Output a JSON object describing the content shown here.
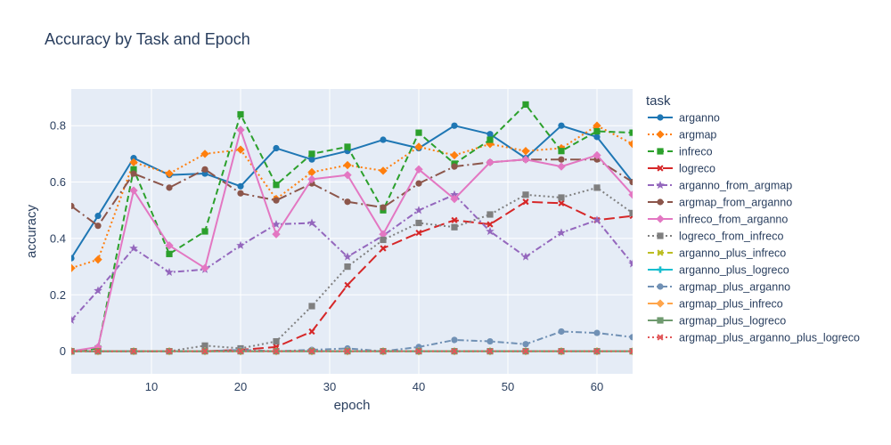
{
  "chart_data": {
    "type": "line",
    "title": "Accuracy by Task and Epoch",
    "xlabel": "epoch",
    "ylabel": "accuracy",
    "legend_title": "task",
    "legend_position": "right",
    "grid": true,
    "xlim": [
      1,
      64
    ],
    "ylim": [
      -0.08,
      0.93
    ],
    "x_ticks": [
      10,
      20,
      30,
      40,
      50,
      60
    ],
    "y_ticks": [
      0,
      0.2,
      0.4,
      0.6,
      0.8
    ],
    "x": [
      1,
      4,
      8,
      12,
      16,
      20,
      24,
      28,
      32,
      36,
      40,
      44,
      48,
      52,
      56,
      60,
      64
    ],
    "series": [
      {
        "name": "arganno",
        "color": "#1f77b4",
        "dash": "solid",
        "marker": "circle",
        "values": [
          0.33,
          0.48,
          0.685,
          0.625,
          0.63,
          0.585,
          0.72,
          0.68,
          0.71,
          0.75,
          0.72,
          0.8,
          0.77,
          0.685,
          0.8,
          0.76,
          0.6
        ]
      },
      {
        "name": "argmap",
        "color": "#ff7f0e",
        "dash": "dot",
        "marker": "diamond",
        "values": [
          0.295,
          0.325,
          0.67,
          0.63,
          0.7,
          0.715,
          0.54,
          0.635,
          0.66,
          0.64,
          0.725,
          0.695,
          0.735,
          0.71,
          0.72,
          0.8,
          0.735
        ]
      },
      {
        "name": "infreco",
        "color": "#2ca02c",
        "dash": "dash",
        "marker": "square",
        "values": [
          0.0,
          0.01,
          0.645,
          0.345,
          0.425,
          0.84,
          0.59,
          0.7,
          0.725,
          0.5,
          0.775,
          0.665,
          0.75,
          0.875,
          0.71,
          0.78,
          0.775
        ]
      },
      {
        "name": "logreco",
        "color": "#d62728",
        "dash": "longdash",
        "marker": "x",
        "values": [
          0.0,
          0.0,
          0.0,
          0.0,
          0.0,
          0.005,
          0.015,
          0.07,
          0.235,
          0.365,
          0.42,
          0.465,
          0.45,
          0.53,
          0.525,
          0.465,
          0.48
        ]
      },
      {
        "name": "arganno_from_argmap",
        "color": "#9467bd",
        "dash": "dashdot",
        "marker": "star",
        "values": [
          0.11,
          0.215,
          0.365,
          0.28,
          0.29,
          0.375,
          0.45,
          0.455,
          0.335,
          0.41,
          0.5,
          0.555,
          0.425,
          0.335,
          0.42,
          0.465,
          0.31
        ]
      },
      {
        "name": "argmap_from_arganno",
        "color": "#8c564b",
        "dash": "longdashdot",
        "marker": "circle",
        "values": [
          0.515,
          0.445,
          0.63,
          0.58,
          0.645,
          0.56,
          0.535,
          0.595,
          0.53,
          0.51,
          0.595,
          0.655,
          0.67,
          0.68,
          0.68,
          0.68,
          0.6
        ]
      },
      {
        "name": "infreco_from_arganno",
        "color": "#e377c2",
        "dash": "solid",
        "marker": "diamond",
        "values": [
          0.0,
          0.015,
          0.57,
          0.375,
          0.295,
          0.785,
          0.415,
          0.61,
          0.625,
          0.415,
          0.645,
          0.54,
          0.67,
          0.68,
          0.655,
          0.695,
          0.555
        ]
      },
      {
        "name": "logreco_from_infreco",
        "color": "#7f7f7f",
        "dash": "dot",
        "marker": "square",
        "values": [
          0.0,
          0.0,
          0.0,
          0.0,
          0.02,
          0.01,
          0.035,
          0.16,
          0.3,
          0.395,
          0.455,
          0.44,
          0.485,
          0.555,
          0.545,
          0.58,
          0.49
        ]
      },
      {
        "name": "arganno_plus_infreco",
        "color": "#bcbd22",
        "dash": "dash",
        "marker": "x",
        "values": [
          0,
          0,
          0,
          0,
          0,
          0,
          0,
          0,
          0,
          0,
          0,
          0,
          0,
          0,
          0,
          0,
          0
        ]
      },
      {
        "name": "arganno_plus_logreco",
        "color": "#17becf",
        "dash": "longdash",
        "marker": "cross",
        "values": [
          0,
          0,
          0,
          0,
          0,
          0,
          0,
          0,
          0,
          0,
          0,
          0,
          0,
          0,
          0,
          0,
          0
        ]
      },
      {
        "name": "argmap_plus_arganno",
        "color": "#7191b5",
        "dash": "dashdot",
        "marker": "circle",
        "values": [
          0.0,
          0.0,
          0.0,
          0.0,
          0.0,
          0.005,
          0.0,
          0.005,
          0.01,
          0.0,
          0.015,
          0.04,
          0.035,
          0.025,
          0.07,
          0.065,
          0.05
        ]
      },
      {
        "name": "argmap_plus_infreco",
        "color": "#ffa54b",
        "dash": "longdashdot",
        "marker": "diamond",
        "values": [
          0,
          0,
          0,
          0,
          0,
          0,
          0,
          0,
          0,
          0,
          0,
          0,
          0,
          0,
          0,
          0,
          0
        ]
      },
      {
        "name": "argmap_plus_logreco",
        "color": "#6f9a6f",
        "dash": "solid",
        "marker": "square",
        "values": [
          0,
          0,
          0,
          0,
          0,
          0,
          0,
          0,
          0,
          0,
          0,
          0,
          0,
          0,
          0,
          0,
          0
        ]
      },
      {
        "name": "argmap_plus_arganno_plus_logreco",
        "color": "#e15759",
        "dash": "dot",
        "marker": "x",
        "values": [
          0,
          0,
          0,
          0,
          0,
          0,
          0,
          0,
          0,
          0,
          0,
          0,
          0,
          0,
          0,
          0,
          0
        ]
      }
    ]
  }
}
